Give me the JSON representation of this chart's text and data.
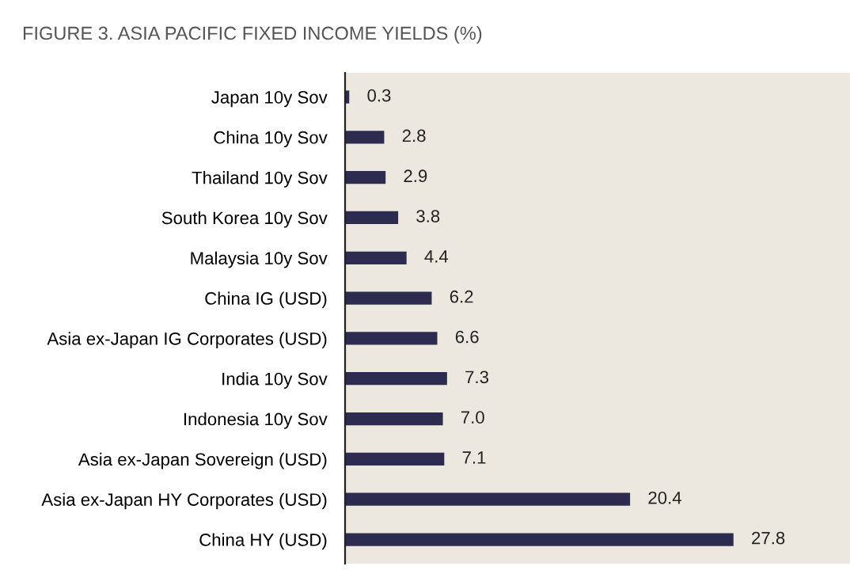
{
  "chart_data": {
    "type": "bar",
    "orientation": "horizontal",
    "title": "FIGURE 3. ASIA PACIFIC FIXED INCOME YIELDS (%)",
    "categories": [
      "Japan 10y Sov",
      "China 10y Sov",
      "Thailand 10y Sov",
      "South Korea 10y Sov",
      "Malaysia 10y Sov",
      "China IG (USD)",
      "Asia ex-Japan IG Corporates (USD)",
      "India 10y Sov",
      "Indonesia 10y Sov",
      "Asia ex-Japan Sovereign (USD)",
      "Asia ex-Japan HY Corporates (USD)",
      "China HY (USD)"
    ],
    "values": [
      0.3,
      2.8,
      2.9,
      3.8,
      4.4,
      6.2,
      6.6,
      7.3,
      7.0,
      7.1,
      20.4,
      27.8
    ],
    "value_labels": [
      "0.3",
      "2.8",
      "2.9",
      "3.8",
      "4.4",
      "6.2",
      "6.6",
      "7.3",
      "7.0",
      "7.1",
      "20.4",
      "27.8"
    ],
    "color": "#2d2b50",
    "grid": false,
    "legend": false
  }
}
